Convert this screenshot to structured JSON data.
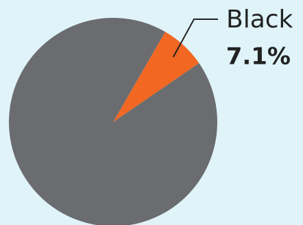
{
  "chart_data": {
    "type": "pie",
    "categories": [
      "Black",
      null
    ],
    "values": [
      7.1,
      92.9
    ],
    "value_labels": [
      "7.1%",
      null
    ],
    "colors": [
      "#f26722",
      "#6b6c70"
    ]
  }
}
